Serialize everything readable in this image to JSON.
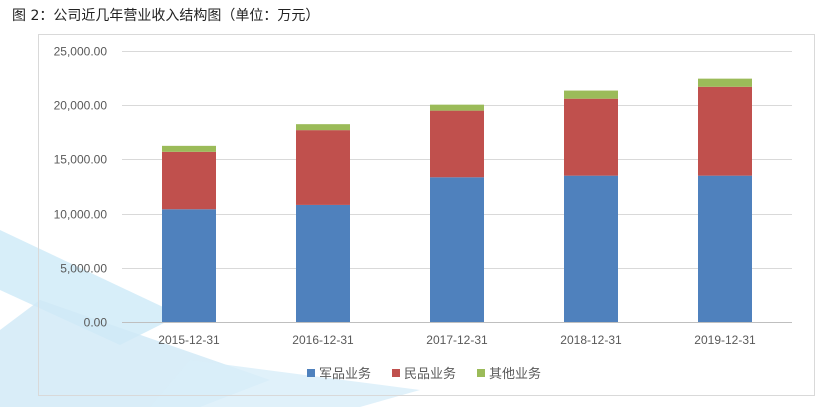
{
  "caption": "图 2：公司近几年营业收入结构图（单位：万元）",
  "chart_data": {
    "type": "bar",
    "stacked": true,
    "categories": [
      "2015-12-31",
      "2016-12-31",
      "2017-12-31",
      "2018-12-31",
      "2019-12-31"
    ],
    "series": [
      {
        "name": "军品业务",
        "color": "#4f81bd",
        "values": [
          10400,
          10800,
          13350,
          13500,
          13500
        ]
      },
      {
        "name": "民品业务",
        "color": "#c0504d",
        "values": [
          5300,
          6900,
          6150,
          7100,
          8200
        ]
      },
      {
        "name": "其他业务",
        "color": "#9bbb59",
        "values": [
          550,
          550,
          550,
          750,
          750
        ]
      }
    ],
    "ylim": [
      0,
      25000
    ],
    "yticks": [
      "0.00",
      "5,000.00",
      "10,000.00",
      "15,000.00",
      "20,000.00",
      "25,000.00"
    ],
    "ytick_values": [
      0,
      5000,
      10000,
      15000,
      20000,
      25000
    ],
    "grid": true,
    "legend_position": "bottom",
    "title": "",
    "xlabel": "",
    "ylabel": ""
  }
}
